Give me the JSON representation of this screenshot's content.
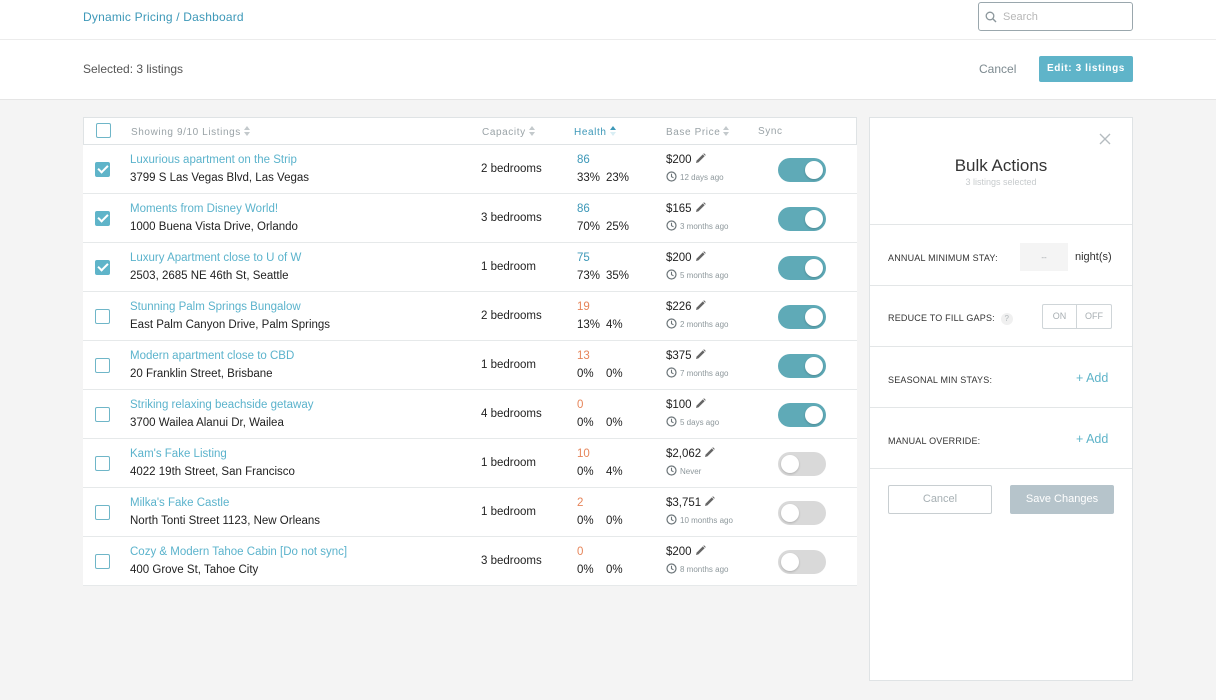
{
  "header": {
    "breadcrumb": "Dynamic Pricing / Dashboard",
    "search_placeholder": "Search"
  },
  "actionbar": {
    "selected_text": "Selected: 3 listings",
    "cancel_label": "Cancel",
    "edit_label": "Edit: 3 listings"
  },
  "table": {
    "columns": {
      "listings": "Showing 9/10 Listings",
      "capacity": "Capacity",
      "health": "Health",
      "base_price": "Base Price",
      "sync": "Sync"
    },
    "rows": [
      {
        "checked": true,
        "title": "Luxurious apartment on the Strip",
        "address": "3799 S Las Vegas Blvd, Las Vegas",
        "capacity": "2 bedrooms",
        "health": "86",
        "health_status": "good",
        "occ1": "33%",
        "occ2": "23%",
        "price": "$200",
        "updated": "12 days ago",
        "sync": true
      },
      {
        "checked": true,
        "title": "Moments from Disney World!",
        "address": "1000 Buena Vista Drive, Orlando",
        "capacity": "3 bedrooms",
        "health": "86",
        "health_status": "good",
        "occ1": "70%",
        "occ2": "25%",
        "price": "$165",
        "updated": "3 months ago",
        "sync": true
      },
      {
        "checked": true,
        "title": "Luxury Apartment close to U of W",
        "address": "2503, 2685 NE 46th St, Seattle",
        "capacity": "1 bedroom",
        "health": "75",
        "health_status": "good",
        "occ1": "73%",
        "occ2": "35%",
        "price": "$200",
        "updated": "5 months ago",
        "sync": true
      },
      {
        "checked": false,
        "title": "Stunning Palm Springs Bungalow",
        "address": "East Palm Canyon Drive, Palm Springs",
        "capacity": "2 bedrooms",
        "health": "19",
        "health_status": "bad",
        "occ1": "13%",
        "occ2": "4%",
        "price": "$226",
        "updated": "2 months ago",
        "sync": true
      },
      {
        "checked": false,
        "title": "Modern apartment close to CBD",
        "address": "20 Franklin Street, Brisbane",
        "capacity": "1 bedroom",
        "health": "13",
        "health_status": "bad",
        "occ1": "0%",
        "occ2": "0%",
        "price": "$375",
        "updated": "7 months ago",
        "sync": true
      },
      {
        "checked": false,
        "title": "Striking relaxing beachside getaway",
        "address": "3700 Wailea Alanui Dr, Wailea",
        "capacity": "4 bedrooms",
        "health": "0",
        "health_status": "bad",
        "occ1": "0%",
        "occ2": "0%",
        "price": "$100",
        "updated": "5 days ago",
        "sync": true
      },
      {
        "checked": false,
        "title": "Kam's Fake Listing",
        "address": "4022 19th Street, San Francisco",
        "capacity": "1 bedroom",
        "health": "10",
        "health_status": "bad",
        "occ1": "0%",
        "occ2": "4%",
        "price": "$2,062",
        "updated": "Never",
        "sync": false
      },
      {
        "checked": false,
        "title": "Milka's Fake Castle",
        "address": "North Tonti Street 1123, New Orleans",
        "capacity": "1 bedroom",
        "health": "2",
        "health_status": "bad",
        "occ1": "0%",
        "occ2": "0%",
        "price": "$3,751",
        "updated": "10 months ago",
        "sync": false
      },
      {
        "checked": false,
        "title": "Cozy & Modern Tahoe Cabin [Do not sync]",
        "address": "400 Grove St, Tahoe City",
        "capacity": "3 bedrooms",
        "health": "0",
        "health_status": "bad",
        "occ1": "0%",
        "occ2": "0%",
        "price": "$200",
        "updated": "8 months ago",
        "sync": false
      }
    ]
  },
  "panel": {
    "title": "Bulk Actions",
    "subtitle": "3 listings selected",
    "annual_min_stay_label": "ANNUAL MINIMUM STAY:",
    "annual_min_stay_value": "--",
    "nights_label": "night(s)",
    "reduce_gaps_label": "REDUCE TO FILL GAPS:",
    "help_glyph": "?",
    "on_label": "ON",
    "off_label": "OFF",
    "seasonal_label": "SEASONAL MIN STAYS:",
    "manual_label": "MANUAL OVERRIDE:",
    "add_label": "+ Add",
    "cancel_label": "Cancel",
    "save_label": "Save Changes"
  },
  "colors": {
    "accent": "#5fb4c9",
    "link": "#3d98b8",
    "health_bad": "#e6855a",
    "toggle_on": "#5faab7",
    "toggle_off": "#d9d9d9"
  }
}
